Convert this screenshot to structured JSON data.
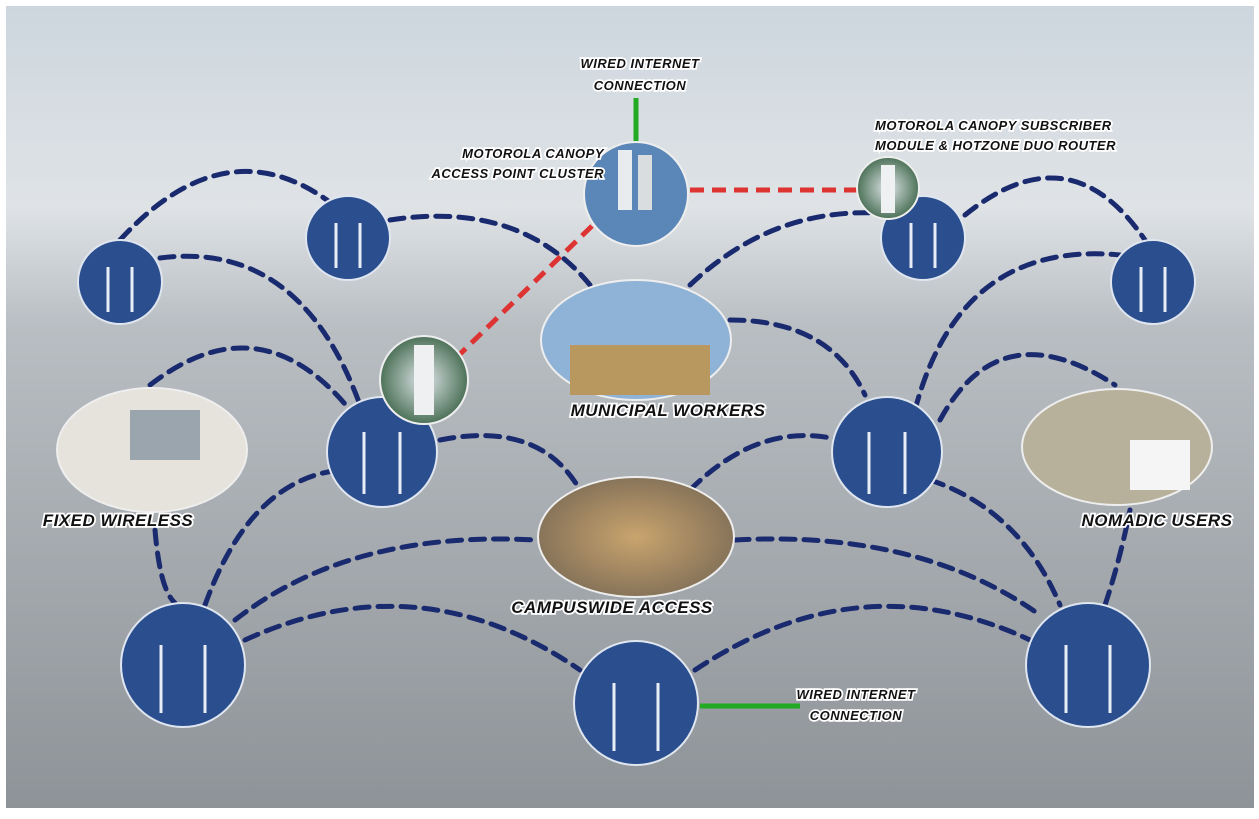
{
  "labels": {
    "wired_top": [
      "WIRED INTERNET",
      "CONNECTION"
    ],
    "access_point": [
      "MOTOROLA CANOPY",
      "ACCESS POINT CLUSTER"
    ],
    "subscriber": [
      "MOTOROLA CANOPY SUBSCRIBER",
      "MODULE & HOTZONE DUO ROUTER"
    ],
    "municipal": "MUNICIPAL WORKERS",
    "fixed": "FIXED WIRELESS",
    "nomadic": "NOMADIC USERS",
    "campus": "CAMPUSWIDE ACCESS",
    "wired_bottom": [
      "WIRED INTERNET",
      "CONNECTION"
    ]
  }
}
